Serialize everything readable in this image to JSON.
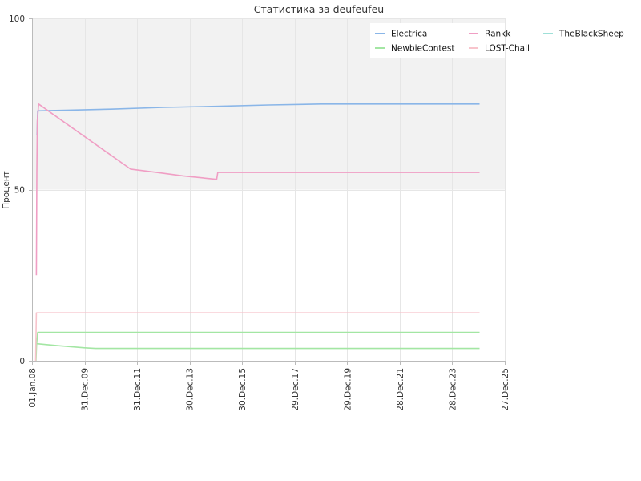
{
  "chart_data": {
    "type": "line",
    "title": "Статистика за deufeufeu",
    "xlabel": "",
    "ylabel": "Процент",
    "ylim": [
      0,
      100
    ],
    "y_ticks": [
      "0",
      "50",
      "100"
    ],
    "x_ticks": [
      "01.Jan.08",
      "31.Dec.09",
      "31.Dec.11",
      "30.Dec.13",
      "30.Dec.15",
      "29.Dec.17",
      "29.Dec.19",
      "28.Dec.21",
      "28.Dec.23",
      "27.Dec.25"
    ],
    "x_tick_dates": [
      "2008-01-01",
      "2009-12-31",
      "2011-12-31",
      "2013-12-30",
      "2015-12-30",
      "2017-12-29",
      "2019-12-29",
      "2021-12-28",
      "2023-12-28",
      "2025-12-27"
    ],
    "xlim": [
      "2008-01-01",
      "2025-12-27"
    ],
    "shaded_band": [
      50,
      100
    ],
    "legend": {
      "placement": "top-right",
      "columns": 3
    },
    "series": [
      {
        "name": "Electrica",
        "color": "#8ab6e8",
        "points": [
          [
            "2008-03-01",
            66
          ],
          [
            "2008-03-10",
            66
          ],
          [
            "2008-03-20",
            73
          ],
          [
            "2009-06-01",
            73.2
          ],
          [
            "2011-01-01",
            73.5
          ],
          [
            "2013-01-01",
            74
          ],
          [
            "2015-01-01",
            74.3
          ],
          [
            "2017-01-01",
            74.7
          ],
          [
            "2019-01-01",
            75
          ],
          [
            "2021-01-01",
            75
          ],
          [
            "2023-01-01",
            75
          ],
          [
            "2025-01-10",
            75
          ]
        ]
      },
      {
        "name": "Rankk",
        "color": "#f09ec4",
        "points": [
          [
            "2008-03-01",
            25
          ],
          [
            "2008-03-08",
            55
          ],
          [
            "2008-03-15",
            70
          ],
          [
            "2008-04-01",
            75
          ],
          [
            "2011-10-01",
            56
          ],
          [
            "2012-10-01",
            55
          ],
          [
            "2013-10-01",
            54
          ],
          [
            "2015-01-10",
            53
          ],
          [
            "2015-01-25",
            55
          ],
          [
            "2017-01-01",
            55
          ],
          [
            "2020-01-01",
            55
          ],
          [
            "2025-01-10",
            55
          ]
        ]
      },
      {
        "name": "TheBlackSheep",
        "color": "#9fe0d8",
        "points": [
          [
            "2008-02-15",
            0
          ],
          [
            "2008-03-01",
            0
          ]
        ]
      },
      {
        "name": "NewbieContest",
        "color": "#a3e6a3",
        "points": [
          [
            "2008-02-25",
            5
          ],
          [
            "2009-01-01",
            4.4
          ],
          [
            "2010-01-01",
            3.8
          ],
          [
            "2010-06-01",
            3.6
          ],
          [
            "2013-01-01",
            3.6
          ],
          [
            "2017-01-01",
            3.6
          ],
          [
            "2021-01-01",
            3.6
          ],
          [
            "2025-01-10",
            3.6
          ]
        ]
      },
      {
        "name": "NewbieContest",
        "color": "#a3e6a3",
        "points": [
          [
            "2008-02-25",
            0
          ],
          [
            "2008-03-05",
            5
          ],
          [
            "2008-03-20",
            8.3
          ],
          [
            "2011-01-01",
            8.3
          ],
          [
            "2015-01-01",
            8.3
          ],
          [
            "2020-01-01",
            8.3
          ],
          [
            "2025-01-10",
            8.3
          ]
        ]
      },
      {
        "name": "LOST-Chall",
        "color": "#f8c4cc",
        "points": [
          [
            "2008-02-20",
            0
          ],
          [
            "2008-03-01",
            14
          ],
          [
            "2012-01-01",
            14
          ],
          [
            "2018-01-01",
            14
          ],
          [
            "2025-01-10",
            14
          ]
        ]
      }
    ],
    "legend_entries": [
      {
        "name": "Electrica",
        "color": "#8ab6e8"
      },
      {
        "name": "Rankk",
        "color": "#f09ec4"
      },
      {
        "name": "TheBlackSheep",
        "color": "#9fe0d8"
      },
      {
        "name": "NewbieContest",
        "color": "#a3e6a3"
      },
      {
        "name": "LOST-Chall",
        "color": "#f8c4cc"
      }
    ]
  }
}
